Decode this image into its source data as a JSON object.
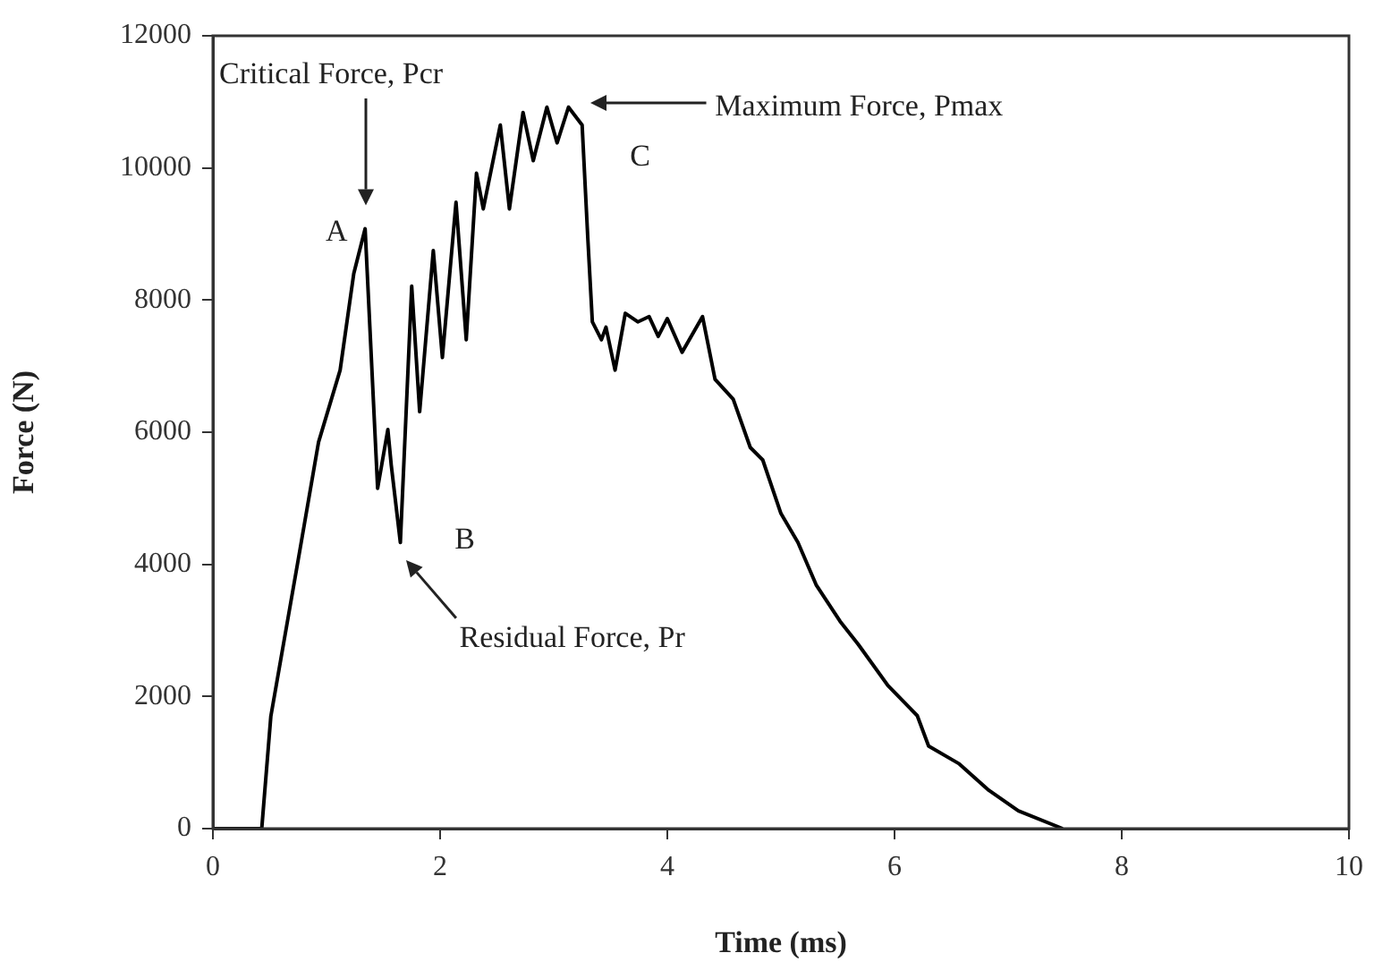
{
  "chart_data": {
    "type": "line",
    "xlabel": "Time (ms)",
    "ylabel": "Force (N)",
    "x": [
      0,
      0.43,
      0.51,
      0.75,
      0.93,
      1.12,
      1.24,
      1.34,
      1.45,
      1.54,
      1.57,
      1.65,
      1.75,
      1.82,
      1.94,
      2.02,
      2.14,
      2.23,
      2.32,
      2.38,
      2.53,
      2.61,
      2.73,
      2.82,
      2.94,
      3.03,
      3.13,
      3.25,
      3.3,
      3.34,
      3.42,
      3.46,
      3.54,
      3.63,
      3.74,
      3.84,
      3.92,
      4.0,
      4.13,
      4.31,
      4.42,
      4.58,
      4.73,
      4.84,
      5.0,
      5.15,
      5.31,
      5.52,
      5.68,
      5.94,
      6.2,
      6.3,
      6.57,
      6.83,
      7.09,
      7.48
    ],
    "values": [
      0,
      0,
      1700,
      4060,
      5850,
      6940,
      8400,
      9080,
      5150,
      6040,
      5500,
      4330,
      8210,
      6310,
      8750,
      7130,
      9480,
      7400,
      9920,
      9380,
      10650,
      9380,
      10840,
      10110,
      10920,
      10380,
      10920,
      10650,
      8940,
      7670,
      7400,
      7590,
      6940,
      7800,
      7670,
      7750,
      7450,
      7720,
      7210,
      7750,
      6800,
      6500,
      5770,
      5580,
      4770,
      4330,
      3690,
      3140,
      2790,
      2170,
      1710,
      1250,
      980,
      580,
      270,
      0
    ],
    "color": "#000000",
    "line_style": "solid",
    "marker": "none",
    "grid": false,
    "legend": false,
    "xlim": [
      0,
      10
    ],
    "xticks": [
      0,
      2,
      4,
      6,
      8,
      10
    ],
    "ylim": [
      0,
      12000
    ],
    "yticks": [
      0,
      2000,
      4000,
      6000,
      8000,
      10000,
      12000
    ],
    "annotations": [
      "Critical Force, Pcr",
      {
        "text": "A",
        "x": 1.34,
        "y": 9080
      },
      "Maximum Force, Pmax",
      {
        "text": "C",
        "x": 3.13,
        "y": 10920
      },
      {
        "text": "B",
        "x": 1.65,
        "y": 4330
      },
      "Residual Force, Pr"
    ]
  }
}
